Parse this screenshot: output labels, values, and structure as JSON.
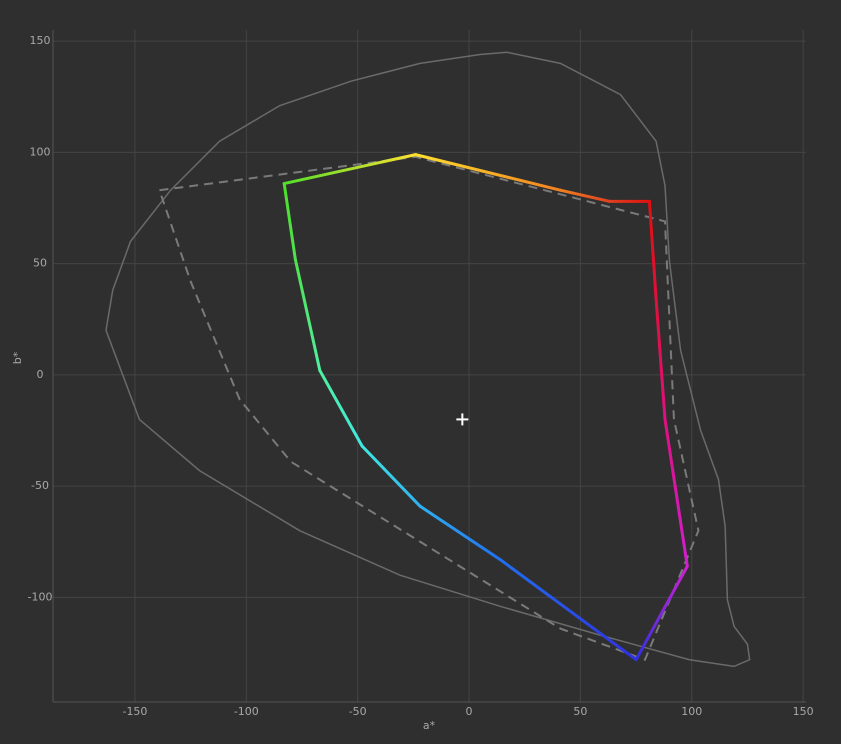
{
  "chart_data": {
    "type": "gamut",
    "x_label": "a*",
    "y_label": "b*",
    "xlim": [
      -186.8,
      151.3
    ],
    "ylim": [
      -147,
      155
    ],
    "xticks": [
      -150,
      -100,
      -50,
      0,
      50,
      100,
      150
    ],
    "yticks": [
      -100,
      -50,
      0,
      50,
      100,
      150
    ],
    "grid": true,
    "series": [
      {
        "kind": "line",
        "color": "#6a6a6a",
        "dash": false,
        "x": [
          17,
          41,
          68,
          84,
          88,
          90,
          95,
          104,
          112,
          115,
          116,
          119,
          125,
          126,
          119,
          99,
          59,
          14,
          -31,
          -76,
          -121,
          -148,
          -163,
          -160,
          -152,
          -134,
          -112,
          -85,
          -53,
          -22,
          5,
          17
        ],
        "y": [
          145,
          140,
          126,
          105,
          85,
          51,
          11,
          -25,
          -47,
          -68,
          -101,
          -113,
          -121,
          -128,
          -131,
          -128,
          -117,
          -104,
          -90,
          -70,
          -43,
          -20,
          20,
          38,
          60,
          83,
          105,
          121,
          132,
          140,
          144,
          145
        ]
      },
      {
        "kind": "line",
        "color": "#7a7a7a",
        "dash": true,
        "x": [
          -139,
          -24,
          88,
          92,
          103,
          79,
          41,
          -80,
          -103,
          -125,
          -139
        ],
        "y": [
          83,
          98,
          69,
          -20,
          -70,
          -128,
          -114,
          -39,
          -11,
          42,
          83
        ]
      },
      {
        "kind": "gradient",
        "x": [
          -83,
          -24,
          41,
          63,
          81,
          84,
          88,
          98,
          75,
          14,
          -22,
          -48,
          -67,
          -78,
          -83
        ],
        "y": [
          86,
          99,
          83,
          78,
          78,
          34,
          -20,
          -86,
          -128,
          -83,
          -59,
          -32,
          2,
          52,
          86
        ],
        "colors": [
          "#4fe02a",
          "#ffe030",
          "#f08020",
          "#e04020",
          "#e01010",
          "#e0103a",
          "#e01080",
          "#d020d0",
          "#3030e0",
          "#2070f0",
          "#30b0f0",
          "#40e8e0",
          "#50f0a0",
          "#50e050",
          "#4fe02a"
        ]
      },
      {
        "kind": "marker",
        "color": "#ffffff",
        "x": [
          -3
        ],
        "y": [
          -20
        ]
      }
    ]
  }
}
